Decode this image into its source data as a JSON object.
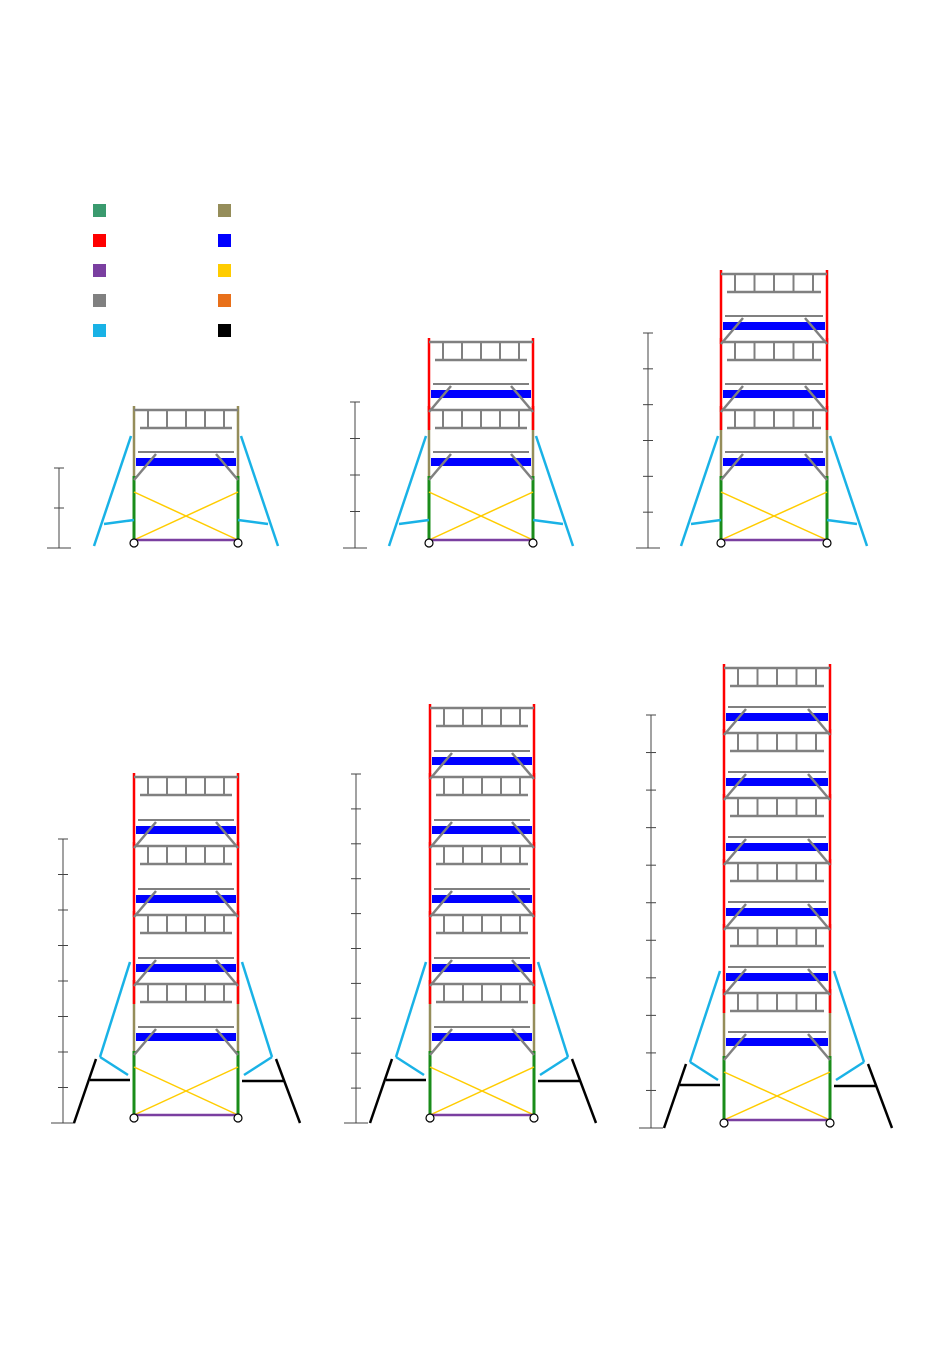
{
  "legend": {
    "items": [
      {
        "color": "#3a9a6e"
      },
      {
        "color": "#ff0000"
      },
      {
        "color": "#7a3fa0"
      },
      {
        "color": "#808080"
      },
      {
        "color": "#19b2e6"
      },
      {
        "color": "#958d5a"
      },
      {
        "color": "#0000ff"
      },
      {
        "color": "#ffcc00"
      },
      {
        "color": "#e8701a"
      },
      {
        "color": "#000000"
      }
    ]
  },
  "colors": {
    "red": "#ff0000",
    "green": "#1a8c1a",
    "khaki": "#958d5a",
    "grey": "#808080",
    "blue": "#0000ff",
    "yellow": "#ffcc00",
    "purple": "#7a3fa0",
    "cyan": "#19b2e6",
    "black": "#000000",
    "ruler": "#444444"
  },
  "scaffolds": [
    {
      "name": "scaffold-1-level",
      "levels": 1,
      "outrigger": "short"
    },
    {
      "name": "scaffold-2-levels",
      "levels": 2,
      "outrigger": "short"
    },
    {
      "name": "scaffold-3-levels",
      "levels": 3,
      "outrigger": "short"
    },
    {
      "name": "scaffold-4-levels",
      "levels": 4,
      "outrigger": "long"
    },
    {
      "name": "scaffold-5-levels",
      "levels": 5,
      "outrigger": "long"
    },
    {
      "name": "scaffold-6-levels",
      "levels": 6,
      "outrigger": "long"
    }
  ]
}
